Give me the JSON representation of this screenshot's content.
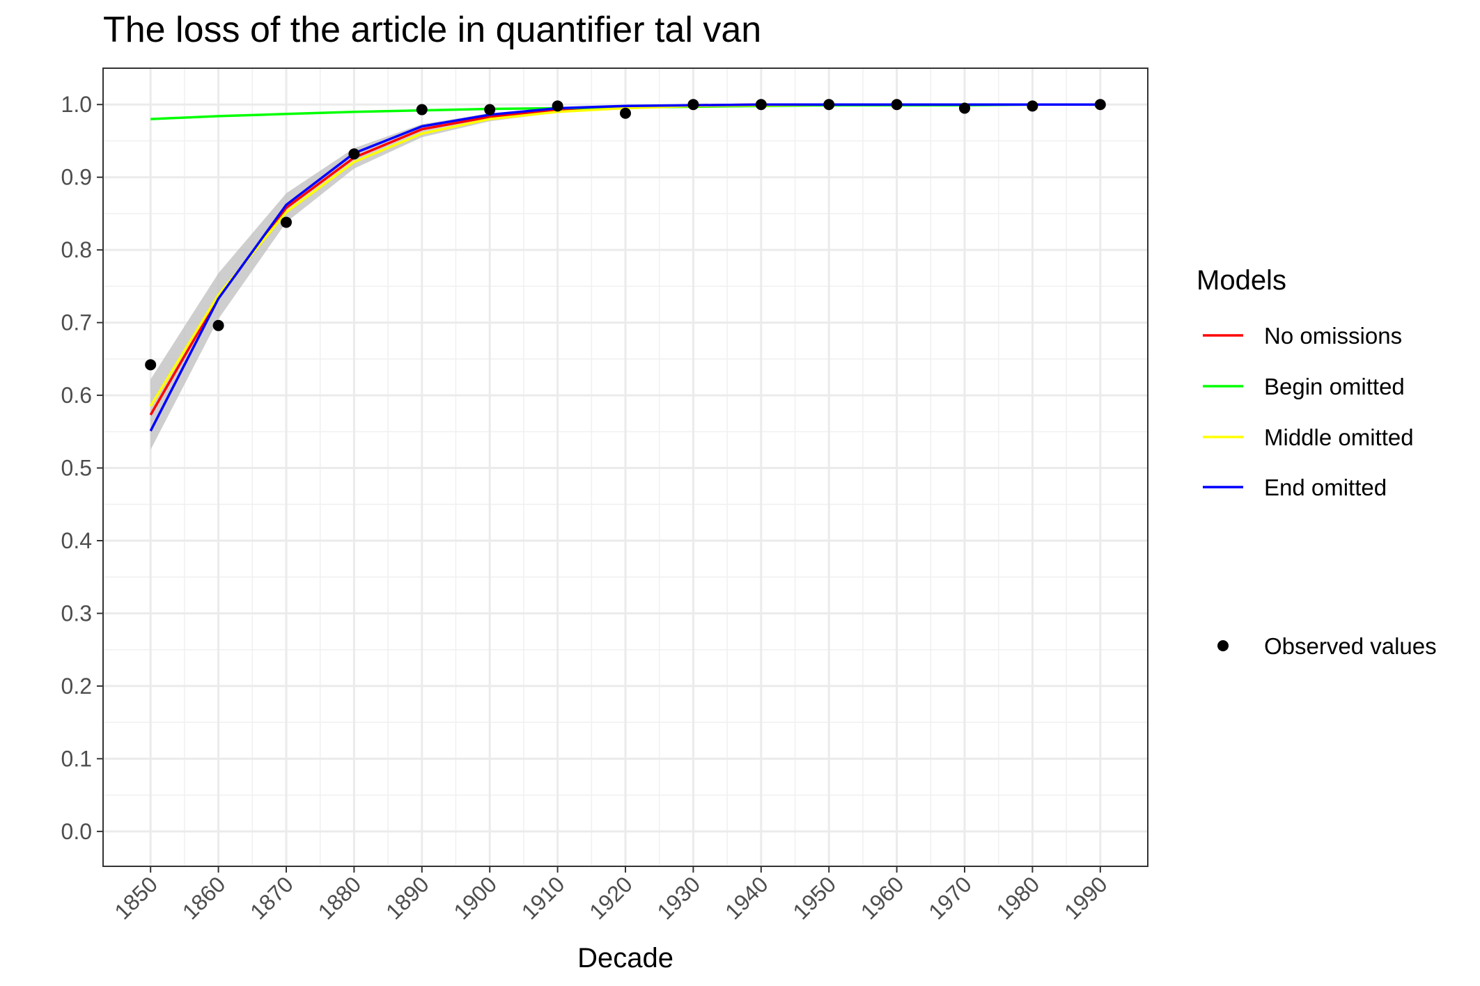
{
  "chart_data": {
    "type": "line",
    "title": "The loss of the article in quantifier tal van",
    "xlabel": "Decade",
    "ylabel": "",
    "x": [
      1850,
      1860,
      1870,
      1880,
      1890,
      1900,
      1910,
      1920,
      1930,
      1940,
      1950,
      1960,
      1970,
      1980,
      1990
    ],
    "x_tick_labels": [
      "1850",
      "1860",
      "1870",
      "1880",
      "1890",
      "1900",
      "1910",
      "1920",
      "1930",
      "1940",
      "1950",
      "1960",
      "1970",
      "1980",
      "1990"
    ],
    "y_tick_labels": [
      "0.0",
      "0.1",
      "0.2",
      "0.3",
      "0.4",
      "0.5",
      "0.6",
      "0.7",
      "0.8",
      "0.9",
      "1.0"
    ],
    "xlim": [
      1843,
      1997
    ],
    "ylim": [
      -0.048,
      1.05
    ],
    "grid": true,
    "legend_position": "right",
    "legend_title": "Models",
    "series": [
      {
        "name": "No omissions",
        "color": "#ff0000",
        "values": [
          0.573,
          0.735,
          0.858,
          0.927,
          0.966,
          0.983,
          0.993,
          0.997,
          0.999,
          1.0,
          1.0,
          1.0,
          1.0,
          1.0,
          1.0
        ]
      },
      {
        "name": "Begin omitted",
        "color": "#00ff00",
        "values": [
          0.98,
          0.984,
          0.987,
          0.99,
          0.992,
          0.994,
          0.995,
          0.996,
          0.997,
          0.998,
          0.999,
          0.999,
          0.999,
          1.0,
          1.0
        ]
      },
      {
        "name": "Middle omitted",
        "color": "#ffff00",
        "values": [
          0.585,
          0.738,
          0.852,
          0.921,
          0.96,
          0.98,
          0.99,
          0.995,
          0.998,
          0.999,
          1.0,
          1.0,
          1.0,
          1.0,
          1.0
        ]
      },
      {
        "name": "End omitted",
        "color": "#0000ff",
        "values": [
          0.551,
          0.733,
          0.862,
          0.933,
          0.97,
          0.986,
          0.995,
          0.998,
          0.999,
          1.0,
          1.0,
          1.0,
          1.0,
          1.0,
          1.0
        ]
      }
    ],
    "confidence_band": {
      "color": "#bebebe",
      "lower": [
        0.525,
        0.705,
        0.838,
        0.912,
        0.955,
        0.977,
        0.989,
        0.995,
        0.998,
        0.999,
        1.0,
        1.0,
        1.0,
        1.0,
        1.0
      ],
      "upper": [
        0.622,
        0.768,
        0.878,
        0.94,
        0.973,
        0.988,
        0.995,
        0.998,
        0.999,
        1.0,
        1.0,
        1.0,
        1.0,
        1.0,
        1.0
      ]
    },
    "observed": {
      "name": "Observed values",
      "color": "#000000",
      "values": [
        0.642,
        0.696,
        0.838,
        0.932,
        0.993,
        0.993,
        0.998,
        0.988,
        1.0,
        1.0,
        1.0,
        1.0,
        0.995,
        0.998,
        1.0
      ]
    }
  }
}
